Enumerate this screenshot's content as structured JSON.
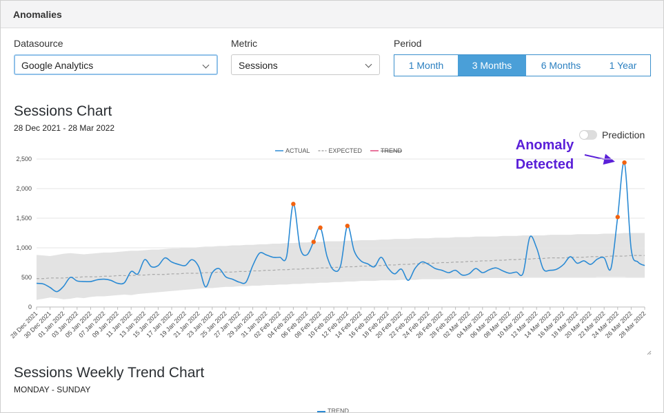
{
  "header": {
    "title": "Anomalies"
  },
  "filters": {
    "datasource": {
      "label": "Datasource",
      "value": "Google Analytics"
    },
    "metric": {
      "label": "Metric",
      "value": "Sessions"
    },
    "period": {
      "label": "Period",
      "options": [
        "1 Month",
        "3 Months",
        "6 Months",
        "1 Year"
      ],
      "selected": "3 Months"
    }
  },
  "prediction_toggle": {
    "label": "Prediction",
    "on": false
  },
  "chart_data": {
    "type": "line",
    "title": "Sessions Chart",
    "subtitle": "28 Dec 2021 - 28 Mar 2022",
    "annotation": "Anomaly Detected",
    "categories": [
      "28 Dec 2021",
      null,
      "30 Dec 2021",
      null,
      "01 Jan 2022",
      null,
      "03 Jan 2022",
      null,
      "05 Jan 2022",
      null,
      "07 Jan 2022",
      null,
      "09 Jan 2022",
      null,
      "11 Jan 2022",
      null,
      "13 Jan 2022",
      null,
      "15 Jan 2022",
      null,
      "17 Jan 2022",
      null,
      "19 Jan 2022",
      null,
      "21 Jan 2022",
      null,
      "23 Jan 2022",
      null,
      "25 Jan 2022",
      null,
      "27 Jan 2022",
      null,
      "29 Jan 2022",
      null,
      "31 Jan 2022",
      null,
      "02 Feb 2022",
      null,
      "04 Feb 2022",
      null,
      "06 Feb 2022",
      null,
      "08 Feb 2022",
      null,
      "10 Feb 2022",
      null,
      "12 Feb 2022",
      null,
      "14 Feb 2022",
      null,
      "16 Feb 2022",
      null,
      "18 Feb 2022",
      null,
      "20 Feb 2022",
      null,
      "22 Feb 2022",
      null,
      "24 Feb 2022",
      null,
      "26 Feb 2022",
      null,
      "28 Feb 2022",
      null,
      "02 Mar 2022",
      null,
      "04 Mar 2022",
      null,
      "06 Mar 2022",
      null,
      "08 Mar 2022",
      null,
      "10 Mar 2022",
      null,
      "12 Mar 2022",
      null,
      "14 Mar 2022",
      null,
      "16 Mar 2022",
      null,
      "18 Mar 2022",
      null,
      "20 Mar 2022",
      null,
      "22 Mar 2022",
      null,
      "24 Mar 2022",
      null,
      "26 Mar 2022",
      null,
      "28 Mar 2022"
    ],
    "series": [
      {
        "name": "ACTUAL",
        "color": "#2a8ad4",
        "dashed": false,
        "values": [
          400,
          390,
          330,
          260,
          350,
          500,
          440,
          430,
          430,
          460,
          470,
          450,
          400,
          410,
          600,
          560,
          800,
          680,
          700,
          830,
          760,
          720,
          700,
          800,
          680,
          340,
          580,
          650,
          510,
          470,
          420,
          420,
          700,
          910,
          880,
          840,
          840,
          850,
          1740,
          1000,
          880,
          1100,
          1340,
          850,
          620,
          700,
          1370,
          950,
          780,
          730,
          680,
          840,
          660,
          560,
          640,
          450,
          650,
          760,
          720,
          650,
          620,
          580,
          620,
          540,
          560,
          650,
          580,
          630,
          660,
          610,
          570,
          590,
          570,
          1180,
          1000,
          640,
          620,
          640,
          720,
          850,
          740,
          780,
          720,
          810,
          830,
          650,
          1520,
          2440,
          980,
          760,
          700
        ]
      },
      {
        "name": "EXPECTED",
        "color": "#a8a8a8",
        "dashed": true,
        "values": [
          480,
          480,
          490,
          490,
          490,
          500,
          500,
          510,
          510,
          510,
          520,
          520,
          530,
          530,
          530,
          540,
          540,
          550,
          550,
          550,
          560,
          560,
          570,
          570,
          570,
          580,
          580,
          590,
          590,
          590,
          600,
          600,
          610,
          610,
          620,
          620,
          630,
          630,
          640,
          640,
          650,
          650,
          660,
          660,
          670,
          670,
          680,
          680,
          690,
          690,
          700,
          700,
          710,
          710,
          720,
          720,
          730,
          730,
          740,
          740,
          750,
          750,
          760,
          760,
          770,
          770,
          780,
          780,
          790,
          790,
          800,
          800,
          810,
          810,
          820,
          820,
          830,
          830,
          830,
          840,
          840,
          840,
          850,
          850,
          850,
          860,
          860,
          860,
          870,
          870,
          870
        ]
      }
    ],
    "hidden_series": [
      {
        "name": "TREND",
        "color": "#e0457b"
      }
    ],
    "band": {
      "color": "#e3e3e3",
      "lower": [
        120,
        140,
        160,
        150,
        130,
        140,
        160,
        150,
        170,
        180,
        180,
        190,
        200,
        210,
        200,
        220,
        230,
        240,
        250,
        260,
        270,
        280,
        290,
        300,
        310,
        320,
        320,
        330,
        340,
        340,
        350,
        350,
        360,
        360,
        370,
        370,
        380,
        380,
        390,
        390,
        400,
        400,
        410,
        410,
        420,
        420,
        430,
        430,
        440,
        440,
        440,
        450,
        450,
        450,
        460,
        460,
        460,
        470,
        470,
        470,
        470,
        480,
        480,
        480,
        480,
        480,
        490,
        490,
        490,
        490,
        490,
        490,
        490,
        500,
        500,
        500,
        500,
        500,
        500,
        500,
        500,
        500,
        500,
        510,
        510,
        510,
        510,
        510,
        500,
        500,
        500
      ],
      "upper": [
        880,
        870,
        860,
        880,
        900,
        910,
        900,
        890,
        900,
        910,
        920,
        920,
        930,
        940,
        950,
        950,
        960,
        970,
        970,
        980,
        990,
        990,
        1000,
        1000,
        1010,
        1020,
        1020,
        1030,
        1030,
        1040,
        1040,
        1050,
        1050,
        1060,
        1060,
        1070,
        1070,
        1080,
        1080,
        1090,
        1090,
        1100,
        1100,
        1110,
        1110,
        1110,
        1120,
        1120,
        1130,
        1130,
        1130,
        1140,
        1140,
        1150,
        1150,
        1150,
        1160,
        1160,
        1160,
        1170,
        1170,
        1170,
        1180,
        1180,
        1180,
        1190,
        1190,
        1190,
        1190,
        1200,
        1200,
        1200,
        1210,
        1210,
        1210,
        1210,
        1220,
        1220,
        1220,
        1220,
        1230,
        1230,
        1230,
        1230,
        1240,
        1240,
        1240,
        1250,
        1250,
        1250,
        1250
      ]
    },
    "anomaly_color": "#f2620f",
    "anomaly_values": [
      null,
      null,
      null,
      null,
      null,
      null,
      null,
      null,
      null,
      null,
      null,
      null,
      null,
      null,
      null,
      null,
      null,
      null,
      null,
      null,
      null,
      null,
      null,
      null,
      null,
      null,
      null,
      null,
      null,
      null,
      null,
      null,
      null,
      null,
      null,
      null,
      null,
      null,
      1740,
      null,
      null,
      1100,
      1340,
      null,
      null,
      null,
      1370,
      null,
      null,
      null,
      null,
      null,
      null,
      null,
      null,
      null,
      null,
      null,
      null,
      null,
      null,
      null,
      null,
      null,
      null,
      null,
      null,
      null,
      null,
      null,
      null,
      null,
      null,
      null,
      null,
      null,
      null,
      null,
      null,
      null,
      null,
      null,
      null,
      null,
      null,
      null,
      1520,
      2440,
      null,
      null,
      null
    ],
    "ylim": [
      0,
      2500
    ],
    "yticks": [
      0,
      500,
      {
        "value": 1000,
        "label": "1,000"
      },
      {
        "value": 1500,
        "label": "1,500"
      },
      {
        "value": 2000,
        "label": "2,000"
      },
      {
        "value": 2500,
        "label": "2,500"
      }
    ],
    "grid": true
  },
  "weekly_trend": {
    "title": "Sessions Weekly Trend Chart",
    "subtitle": "MONDAY - SUNDAY",
    "legend": "TREND"
  }
}
